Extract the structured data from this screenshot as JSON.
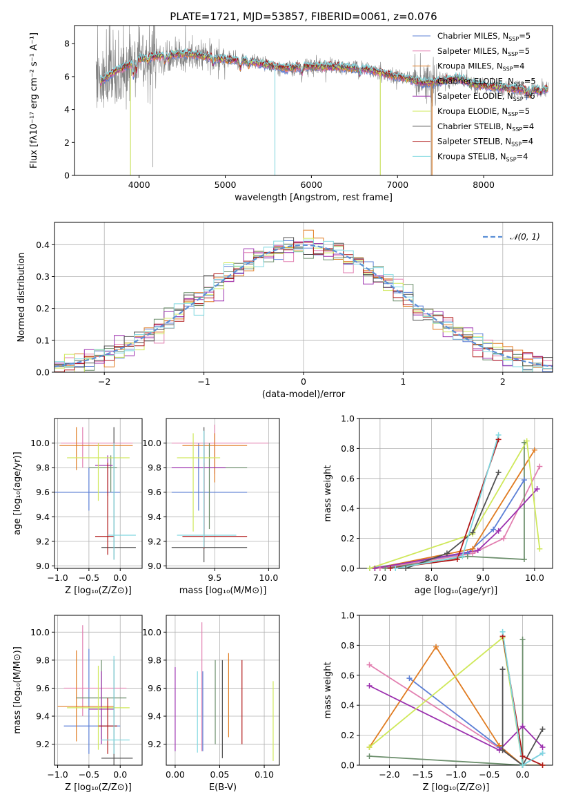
{
  "figure_title": "PLATE=1721, MJD=53857, FIBERID=0061, z=0.076",
  "colors": {
    "chabrier_miles": "#5b7fd6",
    "salpeter_miles": "#e27fb0",
    "kroupa_miles": "#e07b20",
    "chabrier_elodie": "#6b8e6b",
    "salpeter_elodie": "#9b2fae",
    "kroupa_elodie": "#cfe85a",
    "chabrier_stelib": "#505050",
    "salpeter_stelib": "#b01818",
    "kroupa_stelib": "#7fd8e0",
    "normal_curve": "#5b8fd6",
    "grid": "#b0b0b0"
  },
  "chart_data": [
    {
      "id": "spectrum",
      "type": "line",
      "xlabel": "wavelength [Angstrom, rest frame]",
      "ylabel": "Flux [fλ10⁻¹⁷ erg cm⁻² s⁻¹ A⁻¹]",
      "xlim": [
        3250,
        8800
      ],
      "ylim": [
        0,
        9.1
      ],
      "xticks": [
        4000,
        5000,
        6000,
        7000,
        8000
      ],
      "yticks": [
        0,
        2,
        4,
        6,
        8
      ],
      "grid": false,
      "legend_position": "top-right",
      "legend": [
        "Chabrier MILES, N_SSP=5",
        "Salpeter MILES, N_SSP=5",
        "Kroupa MILES, N_SSP=4",
        "Chabrier ELODIE, N_SSP=5",
        "Salpeter ELODIE, N_SSP=6",
        "Kroupa ELODIE, N_SSP=5",
        "Chabrier STELIB, N_SSP=4",
        "Salpeter STELIB, N_SSP=4",
        "Kroupa STELIB, N_SSP=4"
      ],
      "continuum": [
        [
          3500,
          6.2
        ],
        [
          3700,
          6.7
        ],
        [
          3900,
          6.9
        ],
        [
          4100,
          7.2
        ],
        [
          4300,
          7.3
        ],
        [
          4500,
          7.4
        ],
        [
          4700,
          7.3
        ],
        [
          4900,
          7.1
        ],
        [
          5100,
          7.0
        ],
        [
          5300,
          6.9
        ],
        [
          5500,
          6.7
        ],
        [
          5700,
          6.5
        ],
        [
          5900,
          6.6
        ],
        [
          6100,
          6.6
        ],
        [
          6300,
          6.6
        ],
        [
          6500,
          6.5
        ],
        [
          6700,
          6.4
        ],
        [
          6900,
          6.1
        ],
        [
          7100,
          5.9
        ],
        [
          7300,
          5.6
        ],
        [
          7500,
          5.7
        ],
        [
          7700,
          5.9
        ],
        [
          7900,
          5.5
        ],
        [
          8100,
          5.4
        ],
        [
          8300,
          5.3
        ],
        [
          8500,
          5.2
        ],
        [
          8700,
          5.2
        ]
      ]
    },
    {
      "id": "residuals",
      "type": "step",
      "xlabel": "(data-model)/error",
      "ylabel": "Normed distribution",
      "xlim": [
        -2.5,
        2.5
      ],
      "ylim": [
        0,
        0.47
      ],
      "xticks": [
        -2,
        -1,
        0,
        1,
        2
      ],
      "yticks": [
        0.0,
        0.1,
        0.2,
        0.3,
        0.4
      ],
      "grid": true,
      "legend_position": "top-right",
      "legend": [
        "𝒩(0, 1)"
      ],
      "bin_width": 0.1,
      "normal": {
        "mu": 0,
        "sigma": 1
      }
    },
    {
      "id": "age_vs_Z",
      "type": "errorbar",
      "xlabel": "Z [log₁₀(Z/Z⊙)]",
      "ylabel": "age  [log₁₀(age/yr)]",
      "xlim": [
        -1.05,
        0.35
      ],
      "ylim": [
        8.98,
        10.2
      ],
      "xticks": [
        -1.0,
        -0.5,
        0.0
      ],
      "yticks": [
        9.0,
        9.2,
        9.4,
        9.6,
        9.8,
        10.0
      ],
      "grid": true,
      "points": [
        {
          "model": "chabrier_miles",
          "x": -0.5,
          "y": 9.6,
          "xerr": [
            0.6,
            0.5
          ],
          "yerr": [
            0.15,
            0.2
          ]
        },
        {
          "model": "salpeter_miles",
          "x": -0.6,
          "y": 10.0,
          "xerr": [
            0.35,
            0.8
          ],
          "yerr": [
            0.2,
            0.13
          ]
        },
        {
          "model": "kroupa_miles",
          "x": -0.7,
          "y": 9.98,
          "xerr": [
            0.27,
            0.9
          ],
          "yerr": [
            0.2,
            0.15
          ]
        },
        {
          "model": "chabrier_elodie",
          "x": -0.15,
          "y": 9.8,
          "xerr": [
            0.35,
            0.1
          ],
          "yerr": [
            0.2,
            0.1
          ]
        },
        {
          "model": "salpeter_elodie",
          "x": -0.2,
          "y": 9.82,
          "xerr": [
            0.2,
            0.08
          ],
          "yerr": [
            0.25,
            0.08
          ]
        },
        {
          "model": "kroupa_elodie",
          "x": -0.35,
          "y": 9.88,
          "xerr": [
            0.5,
            0.5
          ],
          "yerr": [
            0.35,
            0.12
          ]
        },
        {
          "model": "chabrier_stelib",
          "x": -0.1,
          "y": 9.15,
          "xerr": [
            0.2,
            0.35
          ],
          "yerr": [
            0.1,
            0.98
          ]
        },
        {
          "model": "salpeter_stelib",
          "x": -0.2,
          "y": 9.24,
          "xerr": [
            0.2,
            0.1
          ],
          "yerr": [
            0.15,
            0.6
          ]
        },
        {
          "model": "kroupa_stelib",
          "x": -0.1,
          "y": 9.25,
          "xerr": [
            0.1,
            0.35
          ],
          "yerr": [
            0.2,
            0.75
          ]
        }
      ]
    },
    {
      "id": "age_vs_mass",
      "type": "errorbar",
      "xlabel": "mass [log₁₀(M/M⊙)]",
      "ylabel": "",
      "xlim": [
        9.05,
        10.1
      ],
      "ylim": [
        8.98,
        10.2
      ],
      "xticks": [
        9.5,
        10.0
      ],
      "yticks": [
        9.0,
        9.2,
        9.4,
        9.6,
        9.8,
        10.0
      ],
      "grid": true,
      "points": [
        {
          "model": "chabrier_miles",
          "x": 9.35,
          "y": 9.6,
          "xerr": [
            0.25,
            0.45
          ],
          "yerr": [
            0.15,
            0.4
          ]
        },
        {
          "model": "salpeter_miles",
          "x": 9.5,
          "y": 10.0,
          "xerr": [
            0.4,
            0.5
          ],
          "yerr": [
            0.25,
            0.15
          ]
        },
        {
          "model": "kroupa_miles",
          "x": 9.5,
          "y": 9.98,
          "xerr": [
            0.3,
            0.3
          ],
          "yerr": [
            0.3,
            0.1
          ]
        },
        {
          "model": "chabrier_elodie",
          "x": 9.45,
          "y": 9.8,
          "xerr": [
            0.15,
            0.35
          ],
          "yerr": [
            0.5,
            0.2
          ]
        },
        {
          "model": "salpeter_elodie",
          "x": 9.4,
          "y": 9.8,
          "xerr": [
            0.3,
            0.2
          ],
          "yerr": [
            0.5,
            0.2
          ]
        },
        {
          "model": "kroupa_elodie",
          "x": 9.3,
          "y": 9.88,
          "xerr": [
            0.15,
            0.25
          ],
          "yerr": [
            0.6,
            0.2
          ]
        },
        {
          "model": "chabrier_stelib",
          "x": 9.4,
          "y": 9.15,
          "xerr": [
            0.3,
            0.4
          ],
          "yerr": [
            0.12,
            0.98
          ]
        },
        {
          "model": "salpeter_stelib",
          "x": 9.4,
          "y": 9.24,
          "xerr": [
            0.2,
            0.4
          ],
          "yerr": [
            0.1,
            0.6
          ]
        },
        {
          "model": "kroupa_stelib",
          "x": 9.4,
          "y": 9.25,
          "xerr": [
            0.25,
            0.3
          ],
          "yerr": [
            0.1,
            0.85
          ]
        }
      ]
    },
    {
      "id": "mw_vs_age",
      "type": "line",
      "xlabel": "age  [log₁₀(age/yr)]",
      "ylabel": "mass weight",
      "xlim": [
        6.6,
        10.35
      ],
      "ylim": [
        0,
        1.0
      ],
      "xticks": [
        7,
        8,
        9,
        10
      ],
      "yticks": [
        0.0,
        0.2,
        0.4,
        0.6,
        0.8,
        1.0
      ],
      "grid": true,
      "series": [
        {
          "model": "chabrier_miles",
          "points": [
            [
              6.8,
              0.0
            ],
            [
              8.7,
              0.1
            ],
            [
              9.2,
              0.26
            ],
            [
              9.8,
              0.59
            ]
          ]
        },
        {
          "model": "salpeter_miles",
          "points": [
            [
              7.0,
              0.0
            ],
            [
              8.8,
              0.1
            ],
            [
              9.4,
              0.2
            ],
            [
              10.1,
              0.68
            ]
          ]
        },
        {
          "model": "kroupa_miles",
          "points": [
            [
              6.9,
              0.0
            ],
            [
              8.8,
              0.13
            ],
            [
              10.0,
              0.79
            ]
          ]
        },
        {
          "model": "chabrier_elodie",
          "points": [
            [
              7.1,
              0.0
            ],
            [
              8.7,
              0.08
            ],
            [
              9.8,
              0.06
            ],
            [
              9.8,
              0.84
            ]
          ]
        },
        {
          "model": "salpeter_elodie",
          "points": [
            [
              6.9,
              0.0
            ],
            [
              8.9,
              0.12
            ],
            [
              9.3,
              0.25
            ],
            [
              10.05,
              0.53
            ]
          ]
        },
        {
          "model": "kroupa_elodie",
          "points": [
            [
              6.8,
              0.0
            ],
            [
              8.8,
              0.23
            ],
            [
              9.85,
              0.85
            ],
            [
              10.1,
              0.13
            ]
          ]
        },
        {
          "model": "chabrier_stelib",
          "points": [
            [
              7.5,
              0.0
            ],
            [
              8.3,
              0.1
            ],
            [
              8.8,
              0.24
            ],
            [
              9.3,
              0.64
            ]
          ]
        },
        {
          "model": "salpeter_stelib",
          "points": [
            [
              7.2,
              0.0
            ],
            [
              8.5,
              0.06
            ],
            [
              9.3,
              0.86
            ]
          ]
        },
        {
          "model": "kroupa_stelib",
          "points": [
            [
              7.3,
              0.0
            ],
            [
              8.6,
              0.08
            ],
            [
              9.3,
              0.89
            ]
          ]
        }
      ]
    },
    {
      "id": "mass_vs_Z",
      "type": "errorbar",
      "xlabel": "Z [log₁₀(Z/Z⊙)]",
      "ylabel": "mass [log₁₀(M/M⊙)]",
      "xlim": [
        -1.05,
        0.35
      ],
      "ylim": [
        9.05,
        10.12
      ],
      "xticks": [
        -1.0,
        -0.5,
        0.0
      ],
      "yticks": [
        9.2,
        9.4,
        9.6,
        9.8,
        10.0
      ],
      "grid": true,
      "points": [
        {
          "model": "chabrier_miles",
          "x": -0.5,
          "y": 9.33,
          "xerr": [
            0.4,
            0.5
          ],
          "yerr": [
            0.2,
            0.55
          ]
        },
        {
          "model": "salpeter_miles",
          "x": -0.6,
          "y": 9.6,
          "xerr": [
            0.3,
            0.7
          ],
          "yerr": [
            0.2,
            0.45
          ]
        },
        {
          "model": "kroupa_miles",
          "x": -0.7,
          "y": 9.47,
          "xerr": [
            0.3,
            0.6
          ],
          "yerr": [
            0.25,
            0.4
          ]
        },
        {
          "model": "chabrier_elodie",
          "x": -0.3,
          "y": 9.53,
          "xerr": [
            0.4,
            0.4
          ],
          "yerr": [
            0.3,
            0.27
          ]
        },
        {
          "model": "salpeter_elodie",
          "x": -0.3,
          "y": 9.45,
          "xerr": [
            0.2,
            0.2
          ],
          "yerr": [
            0.25,
            0.27
          ]
        },
        {
          "model": "kroupa_elodie",
          "x": -0.35,
          "y": 9.46,
          "xerr": [
            0.5,
            0.5
          ],
          "yerr": [
            0.3,
            0.3
          ]
        },
        {
          "model": "chabrier_stelib",
          "x": -0.1,
          "y": 9.1,
          "xerr": [
            0.2,
            0.3
          ],
          "yerr": [
            0.05,
            0.7
          ]
        },
        {
          "model": "salpeter_stelib",
          "x": -0.2,
          "y": 9.33,
          "xerr": [
            0.15,
            0.15
          ],
          "yerr": [
            0.2,
            0.2
          ]
        },
        {
          "model": "kroupa_stelib",
          "x": -0.1,
          "y": 9.23,
          "xerr": [
            0.2,
            0.25
          ],
          "yerr": [
            0.1,
            0.6
          ]
        }
      ]
    },
    {
      "id": "mass_vs_ebv",
      "type": "errorbar",
      "xlabel": "E(B-V)",
      "ylabel": "",
      "xlim": [
        -0.01,
        0.117
      ],
      "ylim": [
        9.05,
        10.12
      ],
      "xticks": [
        0.0,
        0.05,
        0.1
      ],
      "yticks": [
        9.2,
        9.4,
        9.6,
        9.8,
        10.0
      ],
      "grid": true,
      "points": [
        {
          "model": "salpeter_elodie",
          "x": 0.0,
          "y": 9.45,
          "yerr": [
            0.3,
            0.3
          ]
        },
        {
          "model": "kroupa_stelib",
          "x": 0.025,
          "y": 9.44,
          "yerr": [
            0.3,
            0.28
          ]
        },
        {
          "model": "salpeter_miles",
          "x": 0.03,
          "y": 9.6,
          "yerr": [
            0.45,
            0.47
          ]
        },
        {
          "model": "chabrier_miles",
          "x": 0.031,
          "y": 9.4,
          "yerr": [
            0.25,
            0.32
          ]
        },
        {
          "model": "chabrier_elodie",
          "x": 0.045,
          "y": 9.5,
          "yerr": [
            0.3,
            0.3
          ]
        },
        {
          "model": "chabrier_stelib",
          "x": 0.053,
          "y": 9.4,
          "yerr": [
            0.3,
            0.4
          ]
        },
        {
          "model": "kroupa_miles",
          "x": 0.06,
          "y": 9.55,
          "yerr": [
            0.3,
            0.3
          ]
        },
        {
          "model": "salpeter_stelib",
          "x": 0.075,
          "y": 9.5,
          "yerr": [
            0.3,
            0.3
          ]
        },
        {
          "model": "kroupa_elodie",
          "x": 0.11,
          "y": 9.35,
          "yerr": [
            0.27,
            0.3
          ]
        }
      ]
    },
    {
      "id": "mw_vs_Z",
      "type": "line",
      "xlabel": "Z [log₁₀(Z/Z⊙)]",
      "ylabel": "mass weight",
      "xlim": [
        -2.45,
        0.45
      ],
      "ylim": [
        0,
        1.0
      ],
      "xticks": [
        -2.0,
        -1.5,
        -1.0,
        -0.5,
        0.0
      ],
      "yticks": [
        0.0,
        0.2,
        0.4,
        0.6,
        0.8,
        1.0
      ],
      "grid": true,
      "series": [
        {
          "model": "chabrier_miles",
          "points": [
            [
              -1.7,
              0.58
            ],
            [
              -0.35,
              0.12
            ],
            [
              0.0,
              0.0
            ],
            [
              0.3,
              0.08
            ]
          ]
        },
        {
          "model": "salpeter_miles",
          "points": [
            [
              -2.3,
              0.67
            ],
            [
              -0.3,
              0.1
            ],
            [
              0.0,
              0.0
            ],
            [
              0.3,
              0.0
            ]
          ]
        },
        {
          "model": "kroupa_miles",
          "points": [
            [
              -2.3,
              0.12
            ],
            [
              -1.3,
              0.79
            ],
            [
              -0.35,
              0.13
            ],
            [
              0.0,
              0.0
            ]
          ]
        },
        {
          "model": "chabrier_elodie",
          "points": [
            [
              -2.3,
              0.06
            ],
            [
              0.0,
              0.0
            ],
            [
              0.0,
              0.84
            ]
          ]
        },
        {
          "model": "salpeter_elodie",
          "points": [
            [
              -2.3,
              0.53
            ],
            [
              -0.35,
              0.1
            ],
            [
              0.0,
              0.26
            ],
            [
              0.3,
              0.12
            ]
          ]
        },
        {
          "model": "kroupa_elodie",
          "points": [
            [
              -2.3,
              0.12
            ],
            [
              -0.3,
              0.85
            ],
            [
              0.0,
              0.0
            ],
            [
              0.3,
              0.0
            ]
          ]
        },
        {
          "model": "chabrier_stelib",
          "points": [
            [
              -0.3,
              0.64
            ],
            [
              -0.3,
              0.1
            ],
            [
              0.0,
              0.0
            ],
            [
              0.3,
              0.24
            ]
          ]
        },
        {
          "model": "salpeter_stelib",
          "points": [
            [
              -0.3,
              0.86
            ],
            [
              0.0,
              0.06
            ],
            [
              0.3,
              0.0
            ]
          ]
        },
        {
          "model": "kroupa_stelib",
          "points": [
            [
              -0.3,
              0.89
            ],
            [
              0.0,
              0.0
            ],
            [
              0.3,
              0.08
            ]
          ]
        }
      ]
    }
  ]
}
